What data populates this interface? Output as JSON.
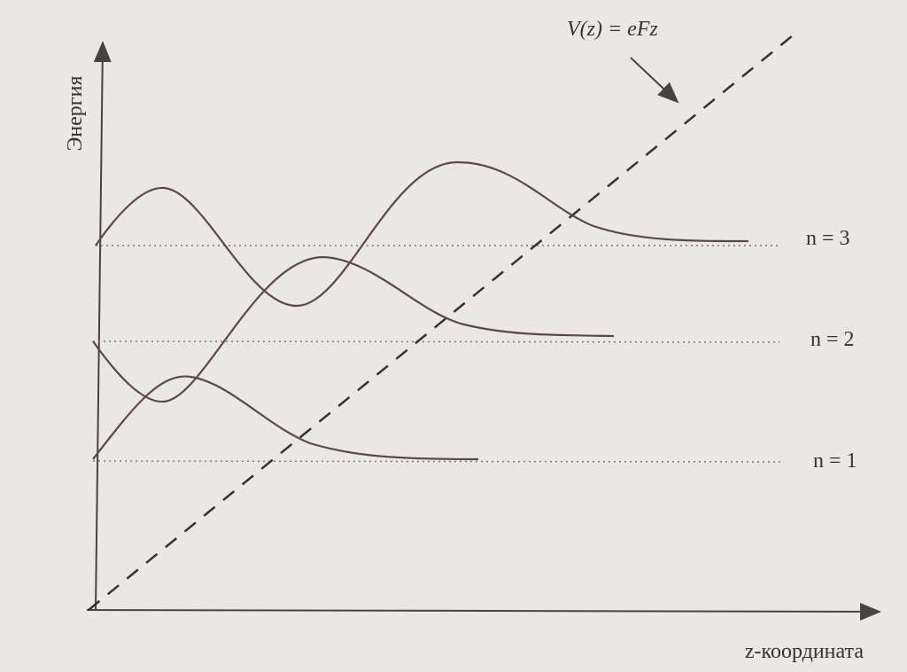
{
  "axes": {
    "y_label": "Энергия",
    "x_label": "z-координата"
  },
  "potential": {
    "label": "V(z) = eFz"
  },
  "levels": [
    {
      "label": "n = 1"
    },
    {
      "label": "n = 2"
    },
    {
      "label": "n = 3"
    }
  ]
}
